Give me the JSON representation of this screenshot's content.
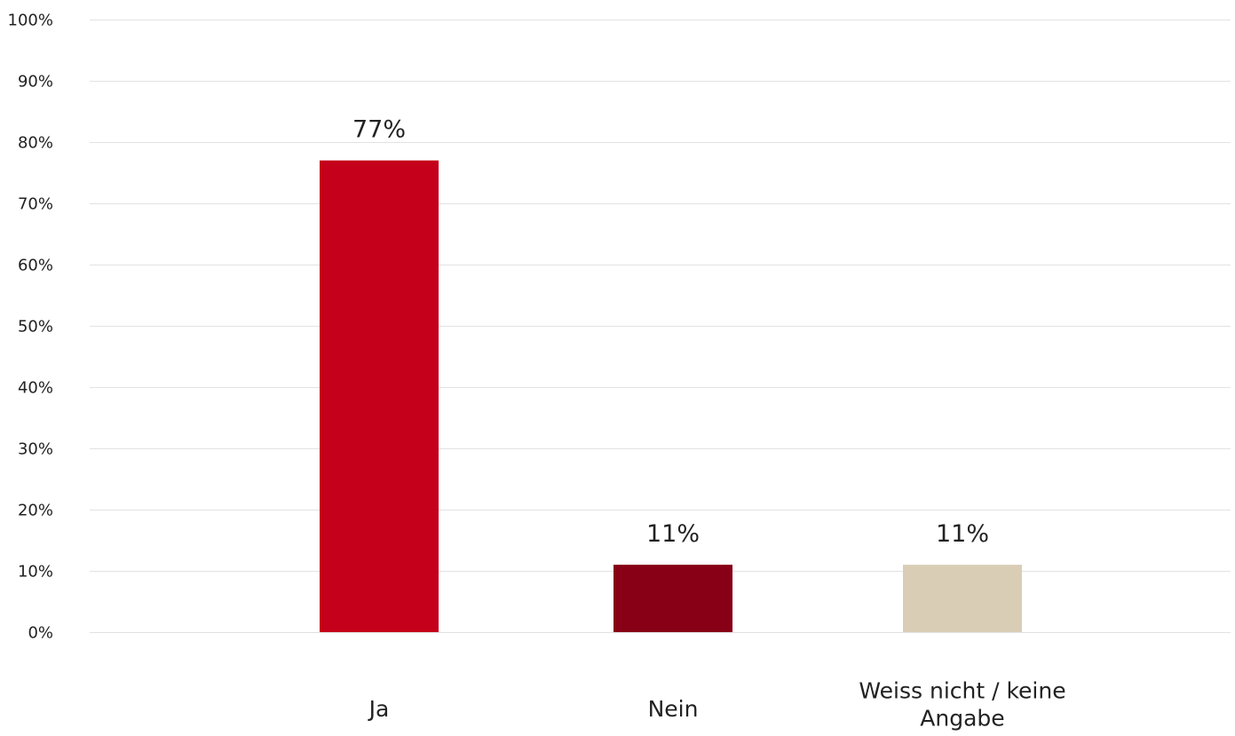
{
  "chart_data": {
    "type": "bar",
    "categories": [
      [
        "Ja"
      ],
      [
        "Nein"
      ],
      [
        "Weiss nicht / keine",
        "Angabe"
      ]
    ],
    "values": [
      77,
      11,
      11
    ],
    "value_labels": [
      "77%",
      "11%",
      "11%"
    ],
    "colors": [
      "#c4001a",
      "#870016",
      "#d9cdb6"
    ],
    "ylim": [
      0,
      100
    ],
    "yticks": [
      {
        "value": 0,
        "label": "0%"
      },
      {
        "value": 10,
        "label": "10%"
      },
      {
        "value": 20,
        "label": "20%"
      },
      {
        "value": 30,
        "label": "30%"
      },
      {
        "value": 40,
        "label": "40%"
      },
      {
        "value": 50,
        "label": "50%"
      },
      {
        "value": 60,
        "label": "60%"
      },
      {
        "value": 70,
        "label": "70%"
      },
      {
        "value": 80,
        "label": "80%"
      },
      {
        "value": 90,
        "label": "90%"
      },
      {
        "value": 100,
        "label": "100%"
      }
    ],
    "grid": true,
    "legend": "none",
    "title": "",
    "xlabel": "",
    "ylabel": ""
  }
}
